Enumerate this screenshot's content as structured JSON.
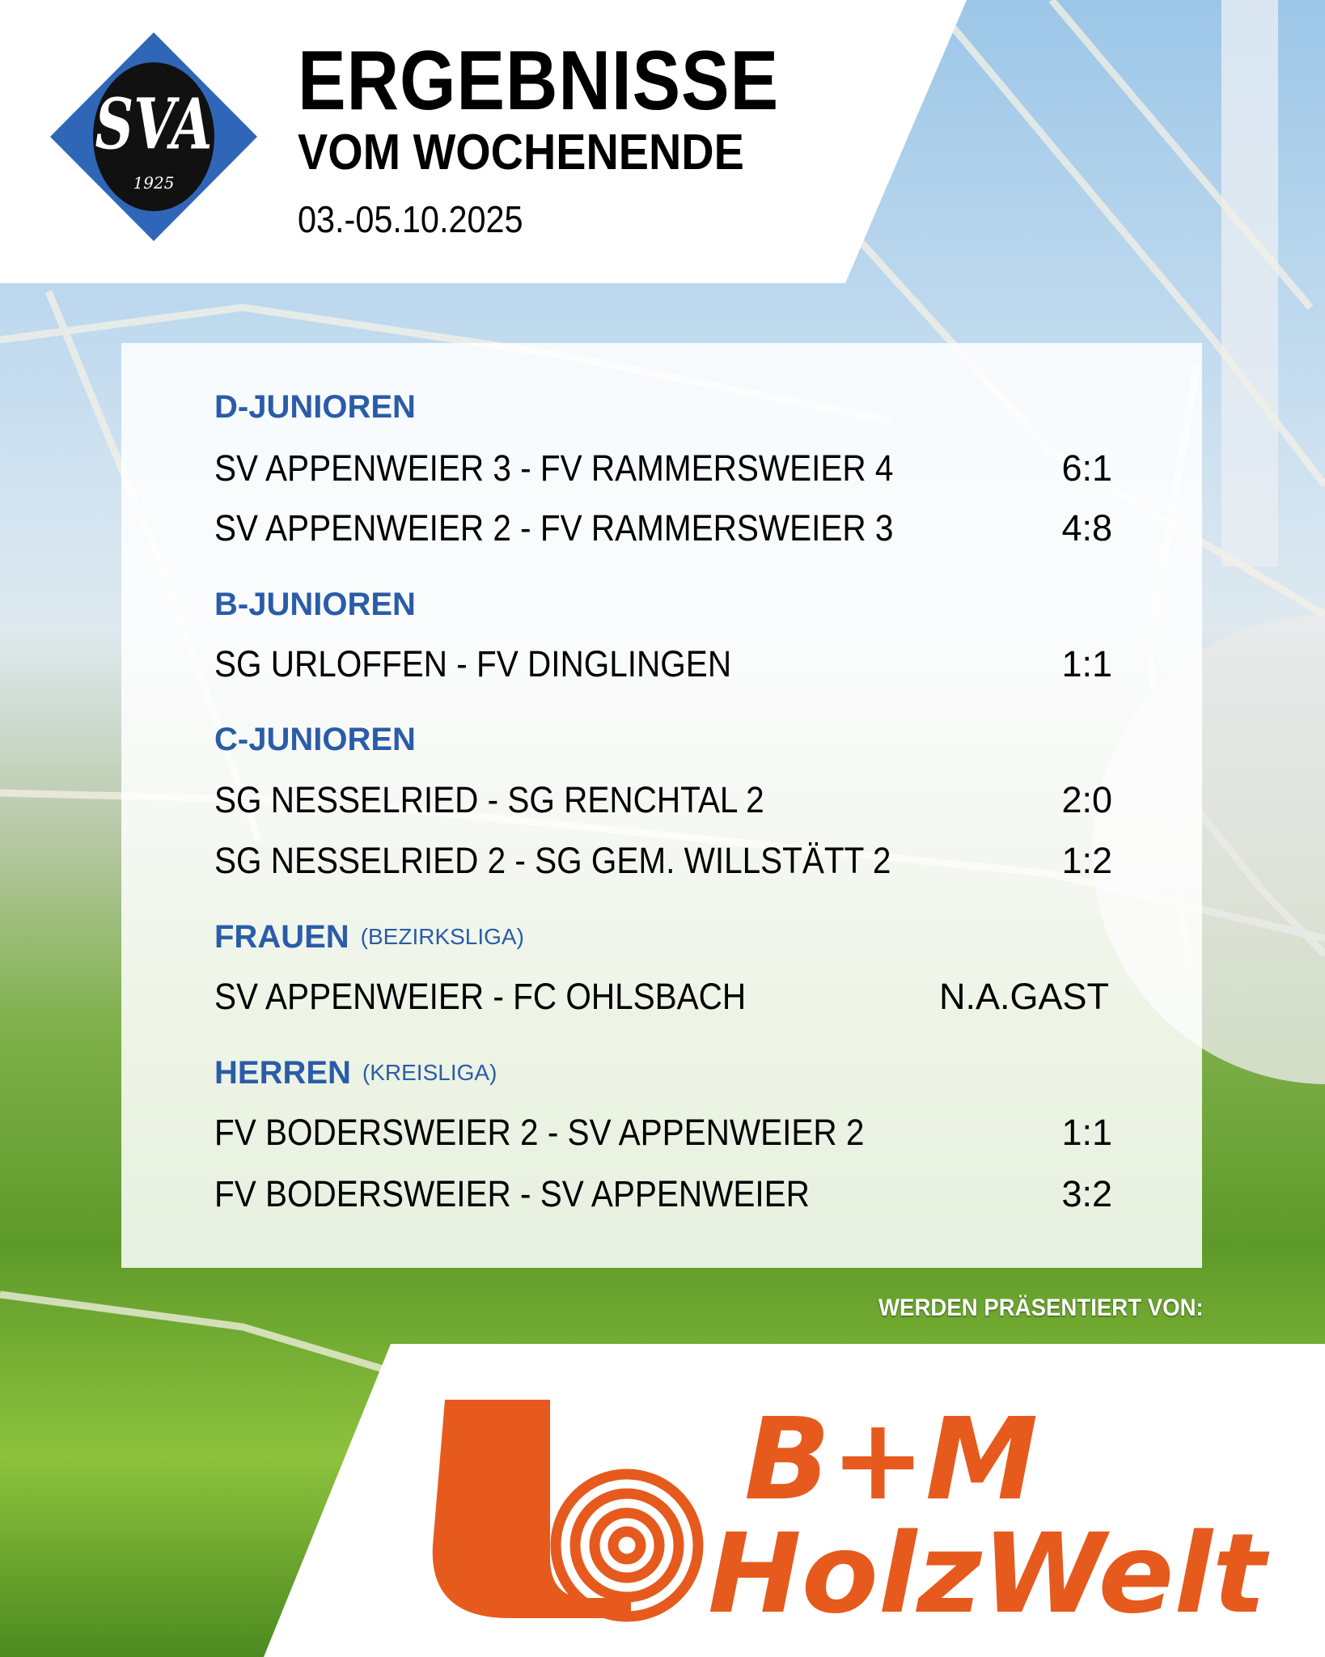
{
  "header": {
    "logo_text": "SVA",
    "logo_year": "1925",
    "title_line1": "ERGEBNISSE",
    "title_line2": "VOM WOCHENENDE",
    "date": "03.-05.10.2025"
  },
  "sections": [
    {
      "title": "D-JUNIOREN",
      "subtitle": "",
      "matches": [
        {
          "teams": "SV APPENWEIER 3 - FV RAMMERSWEIER 4",
          "score": "6:1"
        },
        {
          "teams": "SV APPENWEIER 2 - FV RAMMERSWEIER 3",
          "score": "4:8"
        }
      ]
    },
    {
      "title": "B-JUNIOREN",
      "subtitle": "",
      "matches": [
        {
          "teams": "SG URLOFFEN - FV DINGLINGEN",
          "score": "1:1"
        }
      ]
    },
    {
      "title": "C-JUNIOREN",
      "subtitle": "",
      "matches": [
        {
          "teams": "SG NESSELRIED - SG RENCHTAL 2",
          "score": "2:0"
        },
        {
          "teams": "SG NESSELRIED 2 - SG GEM. WILLSTÄTT 2",
          "score": "1:2"
        }
      ]
    },
    {
      "title": "FRAUEN",
      "subtitle": "(BEZIRKSLIGA)",
      "matches": [
        {
          "teams": "SV APPENWEIER - FC OHLSBACH",
          "score": "N.A.GAST"
        }
      ]
    },
    {
      "title": "HERREN",
      "subtitle": "(KREISLIGA)",
      "matches": [
        {
          "teams": "FV BODERSWEIER 2 - SV APPENWEIER 2",
          "score": "1:1"
        },
        {
          "teams": "FV BODERSWEIER - SV APPENWEIER",
          "score": "3:2"
        }
      ]
    }
  ],
  "sponsor": {
    "intro": "WERDEN PRÄSENTIERT VON:",
    "name_line1": "B+M",
    "name_line2": "HolzWelt"
  },
  "colors": {
    "section_blue": "#2a5ca8",
    "logo_blue": "#2f66b8",
    "sponsor_orange": "#e65a1e"
  }
}
